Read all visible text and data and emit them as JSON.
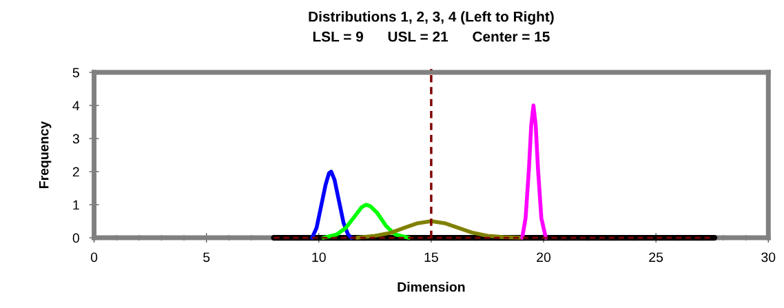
{
  "chart_data": {
    "type": "line",
    "title": "Distributions 1, 2, 3, 4 (Left to Right)",
    "subtitle": "LSL = 9      USL = 21      Center = 15",
    "xlabel": "Dimension",
    "ylabel": "Frequency",
    "xlim": [
      0,
      30
    ],
    "ylim": [
      0,
      5
    ],
    "xticks": [
      0,
      5,
      10,
      15,
      20,
      25,
      30
    ],
    "yticks": [
      0,
      1,
      2,
      3,
      4,
      5
    ],
    "grid": false,
    "legend": false,
    "marker": "none",
    "series": [
      {
        "color": "#000000",
        "line_style": "solid",
        "x": [
          8.0,
          27.6
        ],
        "values": [
          0,
          0
        ]
      },
      {
        "color": "#0000ff",
        "line_style": "solid",
        "x": [
          9.7,
          9.9,
          10.1,
          10.3,
          10.45,
          10.55,
          10.7,
          10.9,
          11.1,
          11.3,
          11.45
        ],
        "values": [
          0,
          0.3,
          0.95,
          1.6,
          1.95,
          2.0,
          1.75,
          1.1,
          0.45,
          0.1,
          0
        ]
      },
      {
        "color": "#00ff00",
        "line_style": "solid",
        "x": [
          10.2,
          10.8,
          11.2,
          11.6,
          11.9,
          12.1,
          12.3,
          12.6,
          13.0,
          13.4,
          14.0
        ],
        "values": [
          0,
          0.1,
          0.3,
          0.65,
          0.92,
          1.0,
          0.95,
          0.75,
          0.35,
          0.1,
          0
        ]
      },
      {
        "color": "#808000",
        "line_style": "solid",
        "x": [
          11.7,
          12.5,
          13.2,
          13.8,
          14.4,
          15.0,
          15.6,
          16.2,
          16.8,
          17.5,
          18.2,
          19.0
        ],
        "values": [
          0,
          0.06,
          0.15,
          0.3,
          0.44,
          0.5,
          0.44,
          0.3,
          0.16,
          0.06,
          0.02,
          0
        ]
      },
      {
        "color": "#ff00ff",
        "line_style": "solid",
        "x": [
          19.05,
          19.2,
          19.35,
          19.45,
          19.55,
          19.65,
          19.75,
          19.9,
          20.1
        ],
        "values": [
          0,
          0.6,
          2.1,
          3.4,
          4.0,
          3.4,
          2.1,
          0.6,
          0
        ]
      },
      {
        "color": "#800000",
        "line_style": "dashed",
        "x": [
          8.0,
          27.6
        ],
        "values": [
          0,
          0
        ]
      }
    ],
    "ref_lines": [
      {
        "axis": "x",
        "value": 15,
        "color": "#800000",
        "line_style": "dashed"
      }
    ]
  }
}
